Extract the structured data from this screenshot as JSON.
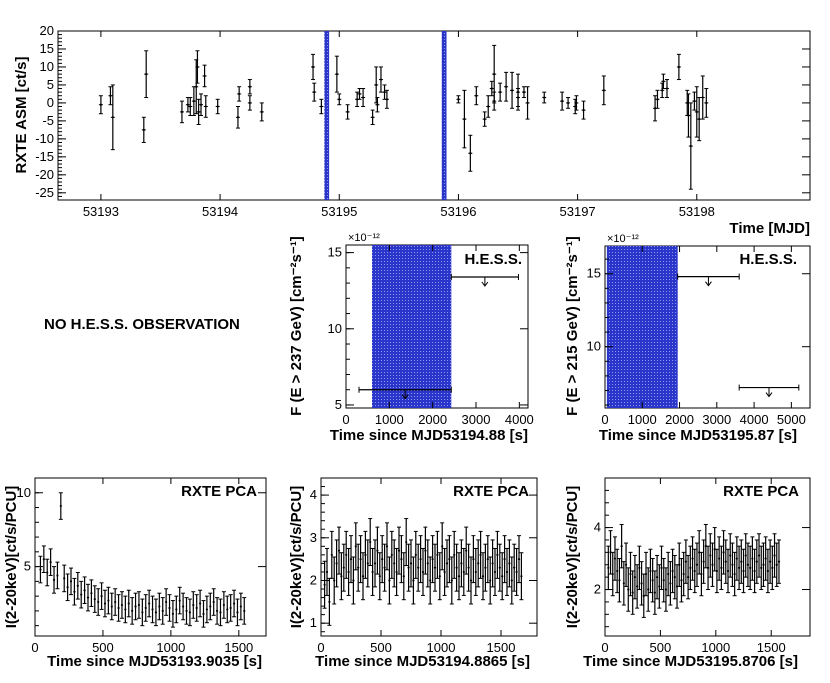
{
  "colors": {
    "band": "#2a35c9",
    "ink": "#000000",
    "background": "#ffffff"
  },
  "no_obs_note": "NO H.E.S.S. OBSERVATION",
  "chart_data": [
    {
      "id": "asm",
      "type": "scatter",
      "title": "",
      "xlabel": "Time [MJD]",
      "ylabel": "RXTE ASM [ct/s]",
      "xlim": [
        53192.64,
        53198.95
      ],
      "ylim": [
        -27,
        20
      ],
      "xticks": [
        53193,
        53194,
        53195,
        53196,
        53197,
        53198
      ],
      "yticks": [
        -25,
        -20,
        -15,
        -10,
        -5,
        0,
        5,
        10,
        15,
        20
      ],
      "bands": [
        [
          53194.875,
          53194.915
        ],
        [
          53195.86,
          53195.9
        ]
      ],
      "points": [
        {
          "x": 53193.0,
          "y": -0.5,
          "e": 2.5
        },
        {
          "x": 53193.08,
          "y": 2.0,
          "e": 2.5
        },
        {
          "x": 53193.1,
          "y": -4.0,
          "e": 9.0
        },
        {
          "x": 53193.36,
          "y": -7.5,
          "e": 3.5
        },
        {
          "x": 53193.38,
          "y": 8.0,
          "e": 6.5
        },
        {
          "x": 53193.68,
          "y": -2.5,
          "e": 3.0
        },
        {
          "x": 53193.73,
          "y": -0.5,
          "e": 2.0
        },
        {
          "x": 53193.75,
          "y": -1.0,
          "e": 2.5
        },
        {
          "x": 53193.78,
          "y": 0.5,
          "e": 4.0
        },
        {
          "x": 53193.8,
          "y": 4.5,
          "e": 7.5
        },
        {
          "x": 53193.81,
          "y": 10.0,
          "e": 4.5
        },
        {
          "x": 53193.82,
          "y": -2.5,
          "e": 3.5
        },
        {
          "x": 53193.84,
          "y": -0.5,
          "e": 3.0
        },
        {
          "x": 53193.87,
          "y": 7.5,
          "e": 3.0
        },
        {
          "x": 53193.88,
          "y": -1.0,
          "e": 3.0
        },
        {
          "x": 53193.98,
          "y": -1.0,
          "e": 2.0
        },
        {
          "x": 53194.15,
          "y": -4.0,
          "e": 3.0
        },
        {
          "x": 53194.16,
          "y": 2.5,
          "e": 2.0
        },
        {
          "x": 53194.25,
          "y": 4.5,
          "e": 2.0
        },
        {
          "x": 53194.25,
          "y": 0.0,
          "e": 2.0
        },
        {
          "x": 53194.35,
          "y": -2.5,
          "e": 2.5
        },
        {
          "x": 53194.78,
          "y": 10.0,
          "e": 3.5
        },
        {
          "x": 53194.79,
          "y": 3.0,
          "e": 2.5
        },
        {
          "x": 53194.85,
          "y": -1.0,
          "e": 2.0
        },
        {
          "x": 53194.98,
          "y": 8.0,
          "e": 5.0
        },
        {
          "x": 53195.0,
          "y": 1.0,
          "e": 1.5
        },
        {
          "x": 53195.07,
          "y": -2.5,
          "e": 2.0
        },
        {
          "x": 53195.15,
          "y": 1.0,
          "e": 2.0
        },
        {
          "x": 53195.17,
          "y": 2.5,
          "e": 1.5
        },
        {
          "x": 53195.2,
          "y": 1.5,
          "e": 2.5
        },
        {
          "x": 53195.28,
          "y": -4.0,
          "e": 2.0
        },
        {
          "x": 53195.31,
          "y": 5.0,
          "e": 5.0
        },
        {
          "x": 53195.32,
          "y": -0.5,
          "e": 2.0
        },
        {
          "x": 53195.35,
          "y": 6.5,
          "e": 3.5
        },
        {
          "x": 53195.38,
          "y": 3.0,
          "e": 2.0
        },
        {
          "x": 53195.4,
          "y": 1.0,
          "e": 2.5
        },
        {
          "x": 53196.0,
          "y": 1.0,
          "e": 1.0
        },
        {
          "x": 53196.05,
          "y": -4.5,
          "e": 8.0
        },
        {
          "x": 53196.1,
          "y": -14.0,
          "e": 5.0
        },
        {
          "x": 53196.15,
          "y": 2.0,
          "e": 2.5
        },
        {
          "x": 53196.22,
          "y": -4.5,
          "e": 2.0
        },
        {
          "x": 53196.25,
          "y": -1.0,
          "e": 3.0
        },
        {
          "x": 53196.28,
          "y": 4.0,
          "e": 2.0
        },
        {
          "x": 53196.3,
          "y": 0.5,
          "e": 2.5
        },
        {
          "x": 53196.3,
          "y": 8.0,
          "e": 8.0
        },
        {
          "x": 53196.35,
          "y": 3.0,
          "e": 2.5
        },
        {
          "x": 53196.4,
          "y": 4.5,
          "e": 4.0
        },
        {
          "x": 53196.45,
          "y": 3.5,
          "e": 5.0
        },
        {
          "x": 53196.5,
          "y": 3.0,
          "e": 5.0
        },
        {
          "x": 53196.5,
          "y": 1.5,
          "e": 2.5
        },
        {
          "x": 53196.55,
          "y": 3.0,
          "e": 1.5
        },
        {
          "x": 53196.58,
          "y": 0.0,
          "e": 4.5
        },
        {
          "x": 53196.72,
          "y": 1.5,
          "e": 1.5
        },
        {
          "x": 53196.87,
          "y": 0.5,
          "e": 2.5
        },
        {
          "x": 53196.92,
          "y": 0.0,
          "e": 1.5
        },
        {
          "x": 53196.98,
          "y": -1.0,
          "e": 2.0
        },
        {
          "x": 53196.99,
          "y": 0.0,
          "e": 2.0
        },
        {
          "x": 53197.05,
          "y": -2.0,
          "e": 2.5
        },
        {
          "x": 53197.22,
          "y": 3.5,
          "e": 4.0
        },
        {
          "x": 53197.65,
          "y": -1.5,
          "e": 3.5
        },
        {
          "x": 53197.67,
          "y": 1.0,
          "e": 2.5
        },
        {
          "x": 53197.71,
          "y": 3.5,
          "e": 2.0
        },
        {
          "x": 53197.72,
          "y": 6.0,
          "e": 2.0
        },
        {
          "x": 53197.75,
          "y": 4.0,
          "e": 2.5
        },
        {
          "x": 53197.85,
          "y": 10.0,
          "e": 3.5
        },
        {
          "x": 53197.92,
          "y": 0.0,
          "e": 3.5
        },
        {
          "x": 53197.93,
          "y": -3.5,
          "e": 6.0
        },
        {
          "x": 53197.95,
          "y": -12.0,
          "e": 12.0
        },
        {
          "x": 53197.98,
          "y": 0.5,
          "e": 2.5
        },
        {
          "x": 53198.0,
          "y": -2.5,
          "e": 7.0
        },
        {
          "x": 53198.02,
          "y": -4.5,
          "e": 6.0
        },
        {
          "x": 53198.05,
          "y": 1.5,
          "e": 6.0
        },
        {
          "x": 53198.08,
          "y": 0.0,
          "e": 4.0
        }
      ]
    },
    {
      "id": "hess1",
      "type": "scatter",
      "legend": "H.E.S.S.",
      "xlabel": "Time since MJD53194.88 [s]",
      "ylabel": "F (E > 237 GeV) [cm⁻²s⁻¹]",
      "multiplier": "×10⁻¹²",
      "xlim": [
        0,
        4200
      ],
      "ylim": [
        4.8,
        15.5
      ],
      "xticks": [
        0,
        1000,
        2000,
        3000,
        4000
      ],
      "yticks": [
        5,
        10,
        15
      ],
      "bands": [
        [
          600,
          2430
        ]
      ],
      "upper_limits": [
        {
          "x1": 300,
          "x2": 2430,
          "y": 6.0
        },
        {
          "x1": 2430,
          "x2": 3980,
          "y": 13.4
        }
      ]
    },
    {
      "id": "hess2",
      "type": "scatter",
      "legend": "H.E.S.S.",
      "xlabel": "Time since MJD53195.87 [s]",
      "ylabel": "F (E > 215 GeV) [cm⁻²s⁻¹]",
      "multiplier": "×10⁻¹²",
      "xlim": [
        0,
        5500
      ],
      "ylim": [
        5.8,
        16.9
      ],
      "xticks": [
        0,
        1000,
        2000,
        3000,
        4000,
        5000
      ],
      "yticks": [
        10,
        15
      ],
      "bands": [
        [
          50,
          1950
        ]
      ],
      "upper_limits": [
        {
          "x1": 1950,
          "x2": 3600,
          "y": 14.8
        },
        {
          "x1": 3600,
          "x2": 5200,
          "y": 7.2
        }
      ]
    },
    {
      "id": "pca1",
      "type": "scatter",
      "legend": "RXTE PCA",
      "xlabel": "Time since MJD53193.9035 [s]",
      "ylabel": "I(2-20keV)[ct/s/PCU]",
      "xlim": [
        0,
        1700
      ],
      "ylim": [
        0.3,
        11
      ],
      "xticks": [
        0,
        500,
        1000,
        1500
      ],
      "yticks": [
        5,
        10
      ],
      "x0": 40,
      "dx": 25,
      "values": [
        4.8,
        5.5,
        4.6,
        5.3,
        4.1,
        4.4,
        9.1,
        4.2,
        3.6,
        4.0,
        3.3,
        3.7,
        3.1,
        3.4,
        2.9,
        3.2,
        2.8,
        2.6,
        3.0,
        2.5,
        2.7,
        2.3,
        2.6,
        2.2,
        2.4,
        2.1,
        2.5,
        2.0,
        2.3,
        2.4,
        1.9,
        2.2,
        2.5,
        2.1,
        1.9,
        2.3,
        2.0,
        2.6,
        2.2,
        1.8,
        2.1,
        2.7,
        2.3,
        2.0,
        1.9,
        2.4,
        2.2,
        2.5,
        1.8,
        2.1,
        2.3,
        2.6,
        2.0,
        1.9,
        2.4,
        2.1,
        2.2,
        2.5,
        1.9,
        2.3,
        2.0
      ],
      "error": 0.9
    },
    {
      "id": "pca2",
      "type": "scatter",
      "legend": "RXTE PCA",
      "xlabel": "Time since MJD53194.8865 [s]",
      "ylabel": "I(2-20keV)[ct/s/PCU]",
      "xlim": [
        0,
        1800
      ],
      "ylim": [
        0.7,
        4.4
      ],
      "xticks": [
        0,
        500,
        1000,
        1500
      ],
      "yticks": [
        1,
        2,
        3,
        4
      ],
      "x0": 30,
      "dx": 20,
      "values": [
        1.9,
        2.2,
        1.5,
        2.6,
        2.0,
        2.4,
        2.7,
        2.1,
        2.3,
        2.6,
        2.2,
        2.5,
        2.0,
        2.8,
        2.3,
        2.5,
        2.1,
        2.6,
        2.4,
        2.9,
        2.2,
        2.4,
        2.7,
        2.1,
        2.5,
        2.3,
        2.8,
        2.0,
        2.6,
        2.4,
        2.2,
        2.7,
        2.5,
        2.1,
        2.9,
        2.3,
        2.4,
        2.0,
        2.6,
        2.3,
        2.5,
        2.2,
        2.7,
        2.4,
        2.0,
        2.5,
        2.3,
        2.6,
        2.1,
        2.8,
        2.2,
        2.4,
        2.5,
        2.0,
        2.6,
        2.3,
        2.1,
        2.4,
        2.2,
        2.7,
        2.3,
        2.0,
        2.5,
        2.2,
        2.4,
        2.6,
        2.1,
        2.3,
        2.5,
        2.0,
        2.4,
        2.2,
        2.6,
        2.3,
        2.1,
        2.5,
        2.2,
        2.4,
        2.0,
        2.3,
        2.2,
        2.5,
        2.1
      ],
      "error": 0.55
    },
    {
      "id": "pca3",
      "type": "scatter",
      "legend": "RXTE PCA",
      "xlabel": "Time since MJD53195.8706 [s]",
      "ylabel": "I(2-20keV)[ct/s/PCU]",
      "xlim": [
        0,
        1850
      ],
      "ylim": [
        0.5,
        5.6
      ],
      "xticks": [
        0,
        500,
        1000,
        1500
      ],
      "yticks": [
        2,
        4
      ],
      "x0": 30,
      "dx": 20,
      "values": [
        2.7,
        3.2,
        2.5,
        3.0,
        2.6,
        2.3,
        3.4,
        2.2,
        2.8,
        2.0,
        2.5,
        1.9,
        2.4,
        2.1,
        2.7,
        2.2,
        1.8,
        2.5,
        2.0,
        2.6,
        2.3,
        1.9,
        2.4,
        2.1,
        2.7,
        2.3,
        2.0,
        2.5,
        2.2,
        2.6,
        2.4,
        2.1,
        2.8,
        2.3,
        2.5,
        2.9,
        2.4,
        2.7,
        3.0,
        2.6,
        2.8,
        3.2,
        2.5,
        2.9,
        3.4,
        2.7,
        3.1,
        2.8,
        3.3,
        2.6,
        3.0,
        2.7,
        3.2,
        2.9,
        2.6,
        3.1,
        2.8,
        2.5,
        3.0,
        2.7,
        2.9,
        2.6,
        3.1,
        2.8,
        2.7,
        3.0,
        2.6,
        2.9,
        3.1,
        2.7,
        2.8,
        3.0,
        2.6,
        2.9,
        2.7,
        3.1,
        2.8,
        2.9
      ],
      "error": 0.7
    }
  ]
}
